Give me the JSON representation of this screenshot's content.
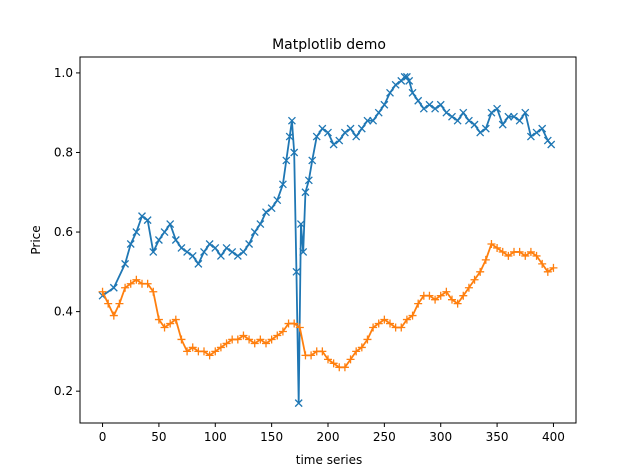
{
  "chart_data": {
    "type": "line",
    "title": "Matplotlib demo",
    "xlabel": "time series",
    "ylabel": "Price",
    "xlim": [
      -20,
      420
    ],
    "ylim": [
      0.12,
      1.04
    ],
    "xticks": [
      0,
      50,
      100,
      150,
      200,
      250,
      300,
      350,
      400
    ],
    "yticks": [
      0.2,
      0.4,
      0.6,
      0.8,
      1.0
    ],
    "ytick_labels": [
      "0.2",
      "0.4",
      "0.6",
      "0.8",
      "1.0"
    ],
    "grid": false,
    "legend": "none",
    "series": [
      {
        "color": "#1f77b4",
        "marker": "x",
        "x": [
          0,
          10,
          20,
          25,
          30,
          35,
          40,
          45,
          50,
          55,
          60,
          65,
          70,
          75,
          80,
          85,
          90,
          95,
          100,
          105,
          110,
          115,
          120,
          125,
          130,
          135,
          140,
          145,
          150,
          155,
          160,
          163,
          166,
          168,
          170,
          172,
          174,
          176,
          178,
          180,
          183,
          186,
          190,
          195,
          200,
          205,
          210,
          215,
          220,
          225,
          230,
          235,
          240,
          245,
          250,
          255,
          260,
          265,
          268,
          270,
          272,
          275,
          280,
          285,
          290,
          295,
          300,
          305,
          310,
          315,
          320,
          325,
          330,
          335,
          340,
          345,
          350,
          355,
          360,
          365,
          370,
          375,
          380,
          385,
          390,
          395,
          398
        ],
        "y": [
          0.44,
          0.46,
          0.52,
          0.57,
          0.6,
          0.64,
          0.63,
          0.55,
          0.58,
          0.6,
          0.62,
          0.58,
          0.56,
          0.55,
          0.54,
          0.52,
          0.55,
          0.57,
          0.56,
          0.54,
          0.56,
          0.55,
          0.54,
          0.55,
          0.57,
          0.6,
          0.62,
          0.65,
          0.66,
          0.68,
          0.72,
          0.78,
          0.84,
          0.88,
          0.8,
          0.5,
          0.17,
          0.62,
          0.55,
          0.7,
          0.73,
          0.78,
          0.84,
          0.86,
          0.85,
          0.82,
          0.83,
          0.85,
          0.86,
          0.84,
          0.86,
          0.88,
          0.88,
          0.9,
          0.92,
          0.95,
          0.97,
          0.98,
          0.99,
          0.99,
          0.98,
          0.95,
          0.93,
          0.91,
          0.92,
          0.91,
          0.92,
          0.9,
          0.89,
          0.88,
          0.9,
          0.88,
          0.87,
          0.85,
          0.86,
          0.9,
          0.91,
          0.87,
          0.89,
          0.89,
          0.88,
          0.9,
          0.84,
          0.85,
          0.86,
          0.83,
          0.82
        ]
      },
      {
        "color": "#ff7f0e",
        "marker": "+",
        "x": [
          0,
          5,
          10,
          15,
          20,
          25,
          30,
          35,
          40,
          45,
          50,
          55,
          60,
          65,
          70,
          75,
          80,
          85,
          90,
          95,
          100,
          105,
          110,
          115,
          120,
          125,
          130,
          135,
          140,
          145,
          150,
          155,
          160,
          165,
          170,
          175,
          180,
          185,
          190,
          195,
          200,
          205,
          210,
          215,
          220,
          225,
          230,
          235,
          240,
          245,
          250,
          255,
          260,
          265,
          270,
          275,
          280,
          285,
          290,
          295,
          300,
          305,
          310,
          315,
          320,
          325,
          330,
          335,
          340,
          345,
          350,
          355,
          360,
          365,
          370,
          375,
          380,
          385,
          390,
          395,
          400
        ],
        "y": [
          0.45,
          0.42,
          0.39,
          0.42,
          0.46,
          0.47,
          0.48,
          0.47,
          0.47,
          0.45,
          0.38,
          0.36,
          0.37,
          0.38,
          0.33,
          0.3,
          0.31,
          0.3,
          0.3,
          0.29,
          0.3,
          0.31,
          0.32,
          0.33,
          0.33,
          0.34,
          0.33,
          0.32,
          0.33,
          0.32,
          0.33,
          0.34,
          0.35,
          0.37,
          0.37,
          0.36,
          0.29,
          0.29,
          0.3,
          0.3,
          0.28,
          0.27,
          0.26,
          0.26,
          0.28,
          0.3,
          0.31,
          0.33,
          0.36,
          0.37,
          0.38,
          0.37,
          0.36,
          0.36,
          0.38,
          0.39,
          0.42,
          0.44,
          0.44,
          0.43,
          0.44,
          0.45,
          0.43,
          0.42,
          0.44,
          0.46,
          0.48,
          0.5,
          0.53,
          0.57,
          0.56,
          0.55,
          0.54,
          0.55,
          0.55,
          0.54,
          0.55,
          0.54,
          0.52,
          0.5,
          0.51
        ]
      }
    ]
  }
}
